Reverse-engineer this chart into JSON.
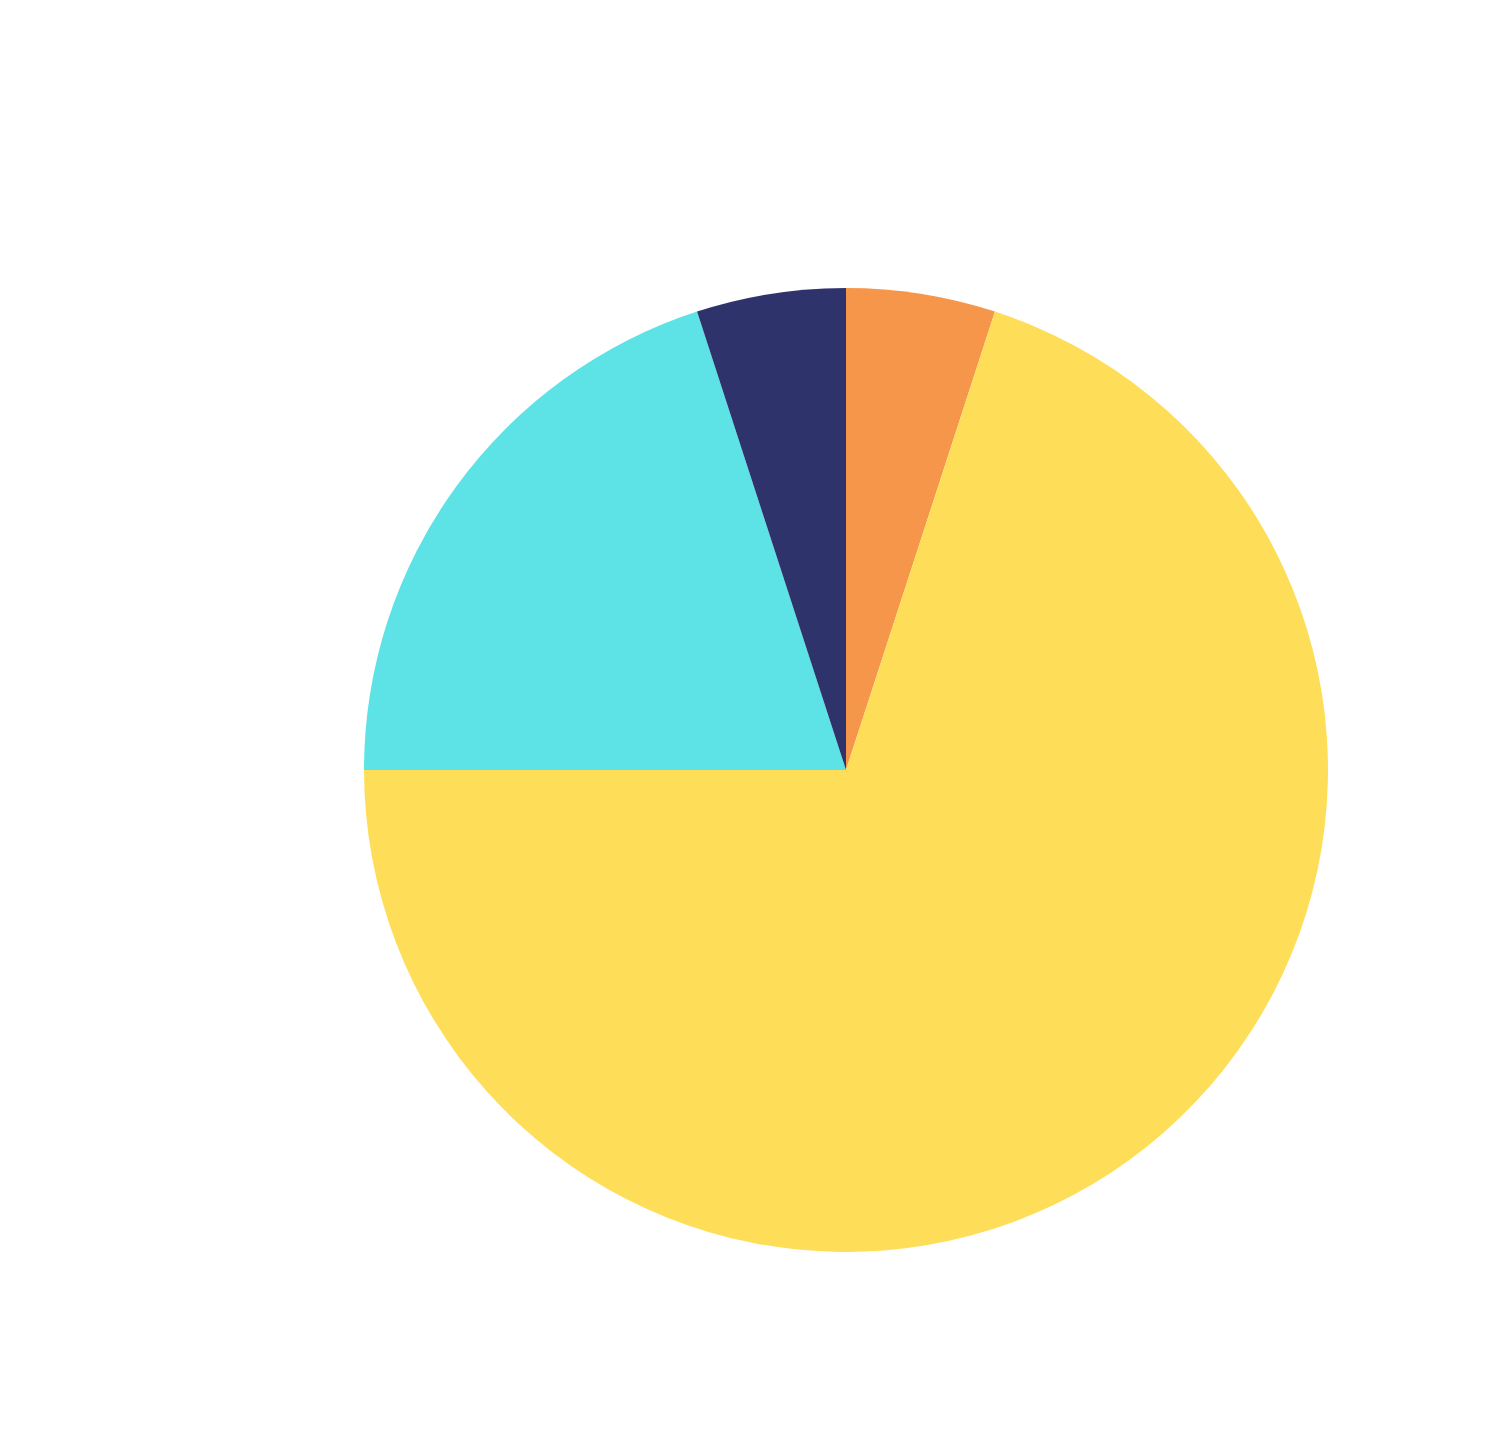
{
  "chart_data": {
    "type": "pie",
    "categories": [
      null,
      null,
      null,
      null
    ],
    "values": [
      5,
      70,
      20,
      5
    ],
    "colors": [
      "#f5964a",
      "#fede58",
      "#5de2e6",
      "#2e336c"
    ]
  }
}
